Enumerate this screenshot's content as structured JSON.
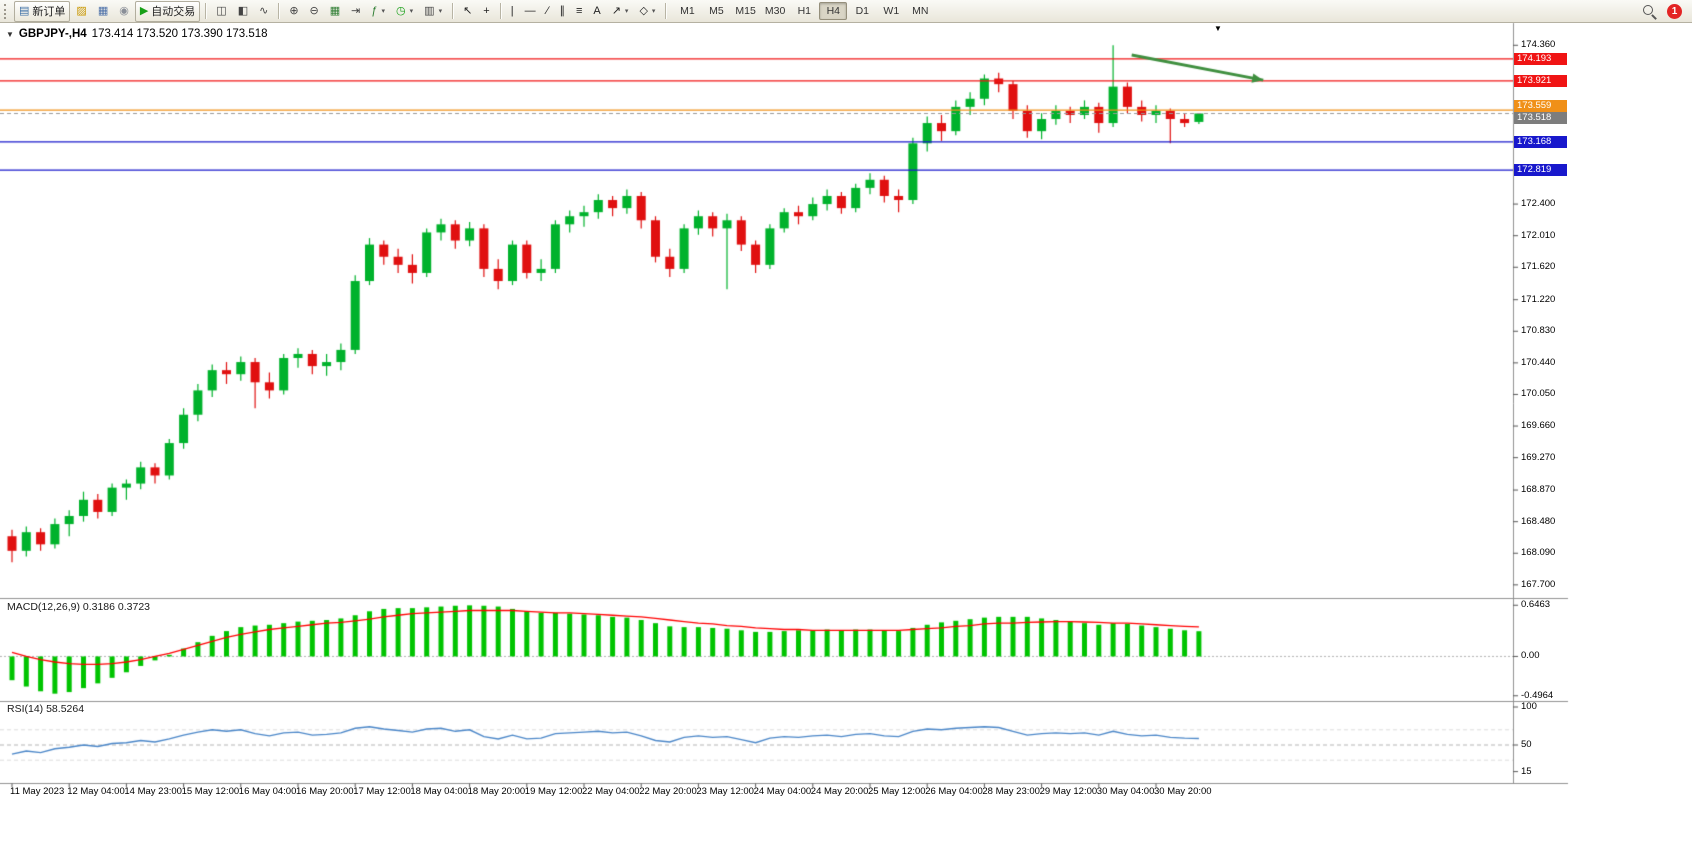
{
  "toolbar": {
    "items": [
      {
        "t": "btn",
        "name": "new-order-button",
        "icon": "new-order-icon",
        "glyph": "▤",
        "glyph_color": "#3a6ea5",
        "label": "新订单"
      },
      {
        "t": "icon",
        "name": "metaeditor-button",
        "icon": "metaeditor-icon",
        "glyph": "▨",
        "glyph_color": "#c99700"
      },
      {
        "t": "icon",
        "name": "profiles-button",
        "icon": "profiles-icon",
        "glyph": "▦",
        "glyph_color": "#4a6fa8"
      },
      {
        "t": "icon",
        "name": "community-button",
        "icon": "community-icon",
        "glyph": "◉",
        "glyph_color": "#8a8f98"
      },
      {
        "t": "btn",
        "name": "auto-trading-button",
        "icon": "play-icon",
        "glyph": "▶",
        "glyph_color": "#18a018",
        "label": "自动交易"
      },
      {
        "t": "sep"
      },
      {
        "t": "icon",
        "name": "bar-chart-button",
        "icon": "ohlc-bars-icon",
        "glyph": "◫",
        "glyph_color": "#444444"
      },
      {
        "t": "icon",
        "name": "candlestick-chart-button",
        "icon": "candlestick-icon",
        "glyph": "◧",
        "glyph_color": "#444444"
      },
      {
        "t": "icon",
        "name": "line-chart-button",
        "icon": "line-chart-icon",
        "glyph": "∿",
        "glyph_color": "#444444"
      },
      {
        "t": "sep"
      },
      {
        "t": "icon",
        "name": "zoom-in-button",
        "icon": "zoom-in-icon",
        "glyph": "⊕",
        "glyph_color": "#444444"
      },
      {
        "t": "icon",
        "name": "zoom-out-button",
        "icon": "zoom-out-icon",
        "glyph": "⊖",
        "glyph_color": "#444444"
      },
      {
        "t": "icon",
        "name": "tile-windows-button",
        "icon": "tile-windows-icon",
        "glyph": "▦",
        "glyph_color": "#2e7d32"
      },
      {
        "t": "icon",
        "name": "auto-scroll-button",
        "icon": "auto-scroll-icon",
        "glyph": "⇥",
        "glyph_color": "#444444"
      },
      {
        "t": "icon",
        "name": "indicators-button",
        "icon": "indicators-icon",
        "glyph": "ƒ",
        "glyph_color": "#2e7d32",
        "caret": true
      },
      {
        "t": "icon",
        "name": "periods-button",
        "icon": "clock-icon",
        "glyph": "◷",
        "glyph_color": "#18a018",
        "caret": true
      },
      {
        "t": "icon",
        "name": "templates-button",
        "icon": "template-icon",
        "glyph": "▥",
        "glyph_color": "#444444",
        "caret": true
      },
      {
        "t": "sep"
      },
      {
        "t": "icon",
        "name": "cursor-button",
        "icon": "cursor-icon",
        "glyph": "↖",
        "glyph_color": "#222222"
      },
      {
        "t": "icon",
        "name": "crosshair-button",
        "icon": "crosshair-icon",
        "glyph": "+",
        "glyph_color": "#222222"
      },
      {
        "t": "sep"
      },
      {
        "t": "icon",
        "name": "vertical-line-button",
        "icon": "vertical-line-icon",
        "glyph": "|",
        "glyph_color": "#222222"
      },
      {
        "t": "icon",
        "name": "horizontal-line-button",
        "icon": "horizontal-line-icon",
        "glyph": "—",
        "glyph_color": "#222222"
      },
      {
        "t": "icon",
        "name": "trendline-button",
        "icon": "trendline-icon",
        "glyph": "∕",
        "glyph_color": "#222222"
      },
      {
        "t": "icon",
        "name": "channel-button",
        "icon": "channel-icon",
        "glyph": "∥",
        "glyph_color": "#222222"
      },
      {
        "t": "icon",
        "name": "fibonacci-button",
        "icon": "fibonacci-icon",
        "glyph": "≡",
        "glyph_color": "#222222"
      },
      {
        "t": "icon",
        "name": "text-button",
        "icon": "text-icon",
        "glyph": "A",
        "glyph_color": "#222222"
      },
      {
        "t": "icon",
        "name": "arrows-button",
        "icon": "arrow-tools-icon",
        "glyph": "↗",
        "glyph_color": "#222222",
        "caret": true
      },
      {
        "t": "icon",
        "name": "shapes-button",
        "icon": "shapes-icon",
        "glyph": "◇",
        "glyph_color": "#222222",
        "caret": true
      },
      {
        "t": "sep"
      }
    ],
    "timeframes": {
      "options": [
        "M1",
        "M5",
        "M15",
        "M30",
        "H1",
        "H4",
        "D1",
        "W1",
        "MN"
      ],
      "active": "H4"
    },
    "right": {
      "badge": "1"
    }
  },
  "chart": {
    "collapse_glyph": "▼",
    "shift_glyph": "▼",
    "title": {
      "symbol": "GBPJPY-,H4",
      "ohlc": "173.414 173.520 173.390 173.518"
    }
  },
  "chart_data": [
    {
      "type": "candlestick",
      "title": "GBPJPY-,H4",
      "up_color": "#00b22c",
      "down_color": "#e01010",
      "ylim": [
        167.55,
        174.45
      ],
      "y_ticks": [
        "174.360",
        "172.400",
        "172.010",
        "171.620",
        "171.220",
        "170.830",
        "170.440",
        "170.050",
        "169.660",
        "169.270",
        "168.870",
        "168.480",
        "168.090",
        "167.700"
      ],
      "x_labels": [
        "11 May 2023",
        "12 May 04:00",
        "14 May 23:00",
        "15 May 12:00",
        "16 May 04:00",
        "16 May 20:00",
        "17 May 12:00",
        "18 May 04:00",
        "18 May 20:00",
        "19 May 12:00",
        "22 May 04:00",
        "22 May 20:00",
        "23 May 12:00",
        "24 May 04:00",
        "24 May 20:00",
        "25 May 12:00",
        "26 May 04:00",
        "28 May 23:00",
        "29 May 12:00",
        "30 May 04:00",
        "30 May 20:00"
      ],
      "x_label_step": 4,
      "hlines": [
        {
          "price": 174.193,
          "color": "#f01414"
        },
        {
          "price": 173.921,
          "color": "#f01414"
        },
        {
          "price": 173.559,
          "color": "#f09018"
        },
        {
          "price": 173.168,
          "color": "#1818cc"
        },
        {
          "price": 172.819,
          "color": "#1818cc"
        }
      ],
      "current_price": {
        "price": 173.518,
        "tag_color": "#7d7d7d"
      },
      "arrow": {
        "from": [
          78.3,
          174.24
        ],
        "to": [
          87.5,
          173.93
        ],
        "color": "#3f8f3f"
      },
      "candles": [
        [
          168.3,
          168.38,
          167.98,
          168.12
        ],
        [
          168.12,
          168.42,
          168.05,
          168.35
        ],
        [
          168.35,
          168.4,
          168.12,
          168.2
        ],
        [
          168.2,
          168.52,
          168.15,
          168.45
        ],
        [
          168.45,
          168.62,
          168.3,
          168.55
        ],
        [
          168.55,
          168.85,
          168.48,
          168.75
        ],
        [
          168.75,
          168.82,
          168.52,
          168.6
        ],
        [
          168.6,
          168.95,
          168.55,
          168.9
        ],
        [
          168.9,
          169.0,
          168.75,
          168.95
        ],
        [
          168.95,
          169.22,
          168.88,
          169.15
        ],
        [
          169.15,
          169.2,
          168.95,
          169.05
        ],
        [
          169.05,
          169.5,
          169.0,
          169.45
        ],
        [
          169.45,
          169.88,
          169.38,
          169.8
        ],
        [
          169.8,
          170.18,
          169.72,
          170.1
        ],
        [
          170.1,
          170.42,
          170.02,
          170.35
        ],
        [
          170.35,
          170.45,
          170.18,
          170.3
        ],
        [
          170.3,
          170.52,
          170.22,
          170.45
        ],
        [
          170.45,
          170.5,
          169.88,
          170.2
        ],
        [
          170.2,
          170.32,
          170.0,
          170.1
        ],
        [
          170.1,
          170.55,
          170.05,
          170.5
        ],
        [
          170.5,
          170.62,
          170.38,
          170.55
        ],
        [
          170.55,
          170.6,
          170.3,
          170.4
        ],
        [
          170.4,
          170.55,
          170.28,
          170.45
        ],
        [
          170.45,
          170.68,
          170.35,
          170.6
        ],
        [
          170.6,
          171.52,
          170.55,
          171.45
        ],
        [
          171.45,
          171.98,
          171.4,
          171.9
        ],
        [
          171.9,
          171.95,
          171.65,
          171.75
        ],
        [
          171.75,
          171.85,
          171.55,
          171.65
        ],
        [
          171.65,
          171.78,
          171.42,
          171.55
        ],
        [
          171.55,
          172.1,
          171.5,
          172.05
        ],
        [
          172.05,
          172.22,
          171.95,
          172.15
        ],
        [
          172.15,
          172.2,
          171.85,
          171.95
        ],
        [
          171.95,
          172.18,
          171.88,
          172.1
        ],
        [
          172.1,
          172.15,
          171.5,
          171.6
        ],
        [
          171.6,
          171.72,
          171.35,
          171.45
        ],
        [
          171.45,
          171.95,
          171.4,
          171.9
        ],
        [
          171.9,
          171.95,
          171.48,
          171.55
        ],
        [
          171.55,
          171.72,
          171.45,
          171.6
        ],
        [
          171.6,
          172.2,
          171.55,
          172.15
        ],
        [
          172.15,
          172.32,
          172.05,
          172.25
        ],
        [
          172.25,
          172.38,
          172.12,
          172.3
        ],
        [
          172.3,
          172.52,
          172.22,
          172.45
        ],
        [
          172.45,
          172.5,
          172.25,
          172.35
        ],
        [
          172.35,
          172.58,
          172.28,
          172.5
        ],
        [
          172.5,
          172.55,
          172.1,
          172.2
        ],
        [
          172.2,
          172.25,
          171.68,
          171.75
        ],
        [
          171.75,
          171.85,
          171.5,
          171.6
        ],
        [
          171.6,
          172.15,
          171.55,
          172.1
        ],
        [
          172.1,
          172.32,
          172.02,
          172.25
        ],
        [
          172.25,
          172.3,
          172.0,
          172.1
        ],
        [
          172.1,
          172.28,
          171.35,
          172.2
        ],
        [
          172.2,
          172.25,
          171.82,
          171.9
        ],
        [
          171.9,
          171.95,
          171.55,
          171.65
        ],
        [
          171.65,
          172.15,
          171.6,
          172.1
        ],
        [
          172.1,
          172.35,
          172.05,
          172.3
        ],
        [
          172.3,
          172.38,
          172.15,
          172.25
        ],
        [
          172.25,
          172.48,
          172.2,
          172.4
        ],
        [
          172.4,
          172.58,
          172.32,
          172.5
        ],
        [
          172.5,
          172.55,
          172.28,
          172.35
        ],
        [
          172.35,
          172.65,
          172.3,
          172.6
        ],
        [
          172.6,
          172.78,
          172.52,
          172.7
        ],
        [
          172.7,
          172.75,
          172.42,
          172.5
        ],
        [
          172.5,
          172.58,
          172.3,
          172.45
        ],
        [
          172.45,
          173.22,
          172.4,
          173.15
        ],
        [
          173.15,
          173.48,
          173.05,
          173.4
        ],
        [
          173.4,
          173.5,
          173.18,
          173.3
        ],
        [
          173.3,
          173.68,
          173.25,
          173.6
        ],
        [
          173.6,
          173.78,
          173.5,
          173.7
        ],
        [
          173.7,
          174.0,
          173.62,
          173.95
        ],
        [
          173.95,
          174.02,
          173.78,
          173.88
        ],
        [
          173.88,
          173.92,
          173.45,
          173.55
        ],
        [
          173.55,
          173.62,
          173.22,
          173.3
        ],
        [
          173.3,
          173.52,
          173.2,
          173.45
        ],
        [
          173.45,
          173.62,
          173.38,
          173.55
        ],
        [
          173.55,
          173.6,
          173.4,
          173.5
        ],
        [
          173.5,
          173.68,
          173.45,
          173.6
        ],
        [
          173.6,
          173.65,
          173.28,
          173.4
        ],
        [
          173.4,
          174.36,
          173.35,
          173.85
        ],
        [
          173.85,
          173.9,
          173.52,
          173.6
        ],
        [
          173.6,
          173.68,
          173.42,
          173.5
        ],
        [
          173.5,
          173.62,
          173.4,
          173.55
        ],
        [
          173.55,
          173.58,
          173.15,
          173.45
        ],
        [
          173.45,
          173.52,
          173.35,
          173.4
        ],
        [
          173.414,
          173.52,
          173.39,
          173.518
        ]
      ]
    },
    {
      "type": "macd",
      "label": "MACD(12,26,9) 0.3186 0.3723",
      "ylim": [
        -0.55,
        0.7
      ],
      "y_ticks": [
        "0.6463",
        "0.00",
        "-0.4964"
      ],
      "colors": {
        "histogram": "#00c400",
        "signal": "#ff0000"
      },
      "histogram": [
        -0.3,
        -0.38,
        -0.44,
        -0.47,
        -0.45,
        -0.4,
        -0.34,
        -0.27,
        -0.2,
        -0.12,
        -0.05,
        0.02,
        0.1,
        0.18,
        0.26,
        0.32,
        0.37,
        0.39,
        0.4,
        0.42,
        0.44,
        0.45,
        0.46,
        0.48,
        0.52,
        0.57,
        0.6,
        0.61,
        0.61,
        0.62,
        0.63,
        0.64,
        0.645,
        0.64,
        0.63,
        0.6,
        0.57,
        0.55,
        0.55,
        0.54,
        0.53,
        0.52,
        0.5,
        0.49,
        0.46,
        0.42,
        0.38,
        0.37,
        0.37,
        0.36,
        0.35,
        0.33,
        0.31,
        0.31,
        0.32,
        0.33,
        0.33,
        0.34,
        0.33,
        0.34,
        0.34,
        0.33,
        0.32,
        0.36,
        0.4,
        0.43,
        0.45,
        0.47,
        0.49,
        0.5,
        0.5,
        0.5,
        0.48,
        0.46,
        0.44,
        0.42,
        0.4,
        0.42,
        0.41,
        0.39,
        0.37,
        0.35,
        0.33,
        0.3186
      ],
      "signal": [
        0.05,
        0.0,
        -0.04,
        -0.07,
        -0.09,
        -0.1,
        -0.1,
        -0.09,
        -0.07,
        -0.04,
        0.0,
        0.04,
        0.09,
        0.14,
        0.19,
        0.24,
        0.28,
        0.31,
        0.34,
        0.36,
        0.38,
        0.4,
        0.42,
        0.43,
        0.45,
        0.47,
        0.5,
        0.52,
        0.54,
        0.55,
        0.56,
        0.57,
        0.58,
        0.58,
        0.58,
        0.58,
        0.57,
        0.56,
        0.55,
        0.55,
        0.54,
        0.53,
        0.52,
        0.51,
        0.5,
        0.48,
        0.46,
        0.44,
        0.42,
        0.41,
        0.39,
        0.38,
        0.36,
        0.35,
        0.34,
        0.34,
        0.33,
        0.33,
        0.33,
        0.33,
        0.33,
        0.33,
        0.33,
        0.34,
        0.35,
        0.36,
        0.38,
        0.39,
        0.41,
        0.42,
        0.42,
        0.43,
        0.435,
        0.44,
        0.44,
        0.435,
        0.43,
        0.42,
        0.42,
        0.41,
        0.4,
        0.39,
        0.38,
        0.3723
      ]
    },
    {
      "type": "rsi",
      "label": "RSI(14) 58.5264",
      "ylim": [
        0,
        100
      ],
      "y_ticks": [
        "100",
        "50",
        "15"
      ],
      "levels": [
        70,
        50,
        30
      ],
      "color": "#4a86c8",
      "values": [
        38,
        42,
        40,
        45,
        47,
        50,
        48,
        52,
        53,
        56,
        54,
        58,
        63,
        67,
        70,
        68,
        70,
        65,
        62,
        66,
        67,
        63,
        64,
        66,
        72,
        74,
        71,
        69,
        67,
        71,
        72,
        68,
        70,
        61,
        58,
        63,
        58,
        59,
        65,
        66,
        67,
        68,
        66,
        67,
        62,
        56,
        54,
        60,
        62,
        60,
        61,
        57,
        53,
        59,
        61,
        60,
        62,
        63,
        61,
        64,
        65,
        62,
        61,
        68,
        71,
        70,
        72,
        73,
        74,
        73,
        68,
        63,
        65,
        66,
        65,
        66,
        63,
        68,
        64,
        62,
        63,
        60,
        59,
        58.53
      ]
    }
  ]
}
